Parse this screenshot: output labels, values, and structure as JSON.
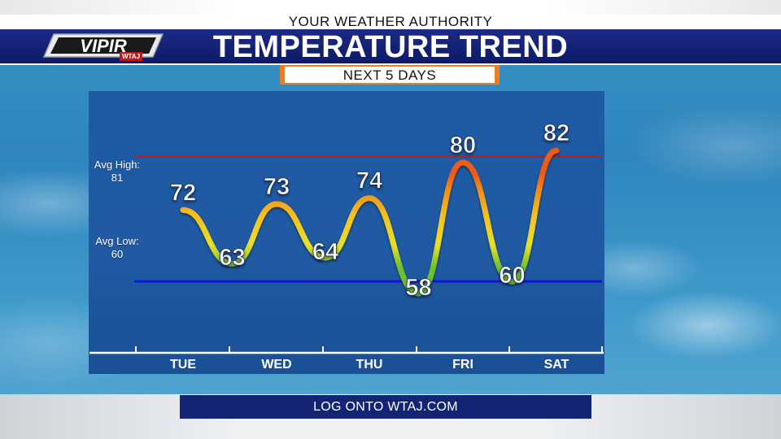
{
  "header": {
    "tagline": "YOUR WEATHER AUTHORITY",
    "title": "TEMPERATURE TREND",
    "subtitle": "NEXT 5 DAYS"
  },
  "logo": {
    "text": "VIPIR",
    "badge": "WTAJ"
  },
  "footer": {
    "text": "LOG ONTO WTAJ.COM"
  },
  "reference_lines": {
    "avg_high_label": "Avg High:",
    "avg_high_value": "81",
    "avg_low_label": "Avg Low:",
    "avg_low_value": "60"
  },
  "colors": {
    "avg_high_line": "#b0202a",
    "avg_low_line": "#1010e8",
    "accent_orange": "#f07d19",
    "navy": "#142475"
  },
  "chart_data": {
    "type": "line",
    "title": "TEMPERATURE TREND",
    "subtitle": "NEXT 5 DAYS",
    "categories": [
      "TUE",
      "WED",
      "THU",
      "FRI",
      "SAT"
    ],
    "x": [
      "TUE",
      "TUE night",
      "WED",
      "WED night",
      "THU",
      "THU night",
      "FRI",
      "FRI night",
      "SAT"
    ],
    "values": [
      72,
      63,
      73,
      64,
      74,
      58,
      80,
      60,
      82
    ],
    "point_labels": [
      "72",
      "63",
      "73",
      "64",
      "74",
      "58",
      "80",
      "60",
      "82"
    ],
    "avg_high": 81,
    "avg_low": 60,
    "ylim": [
      48,
      92
    ],
    "grid": false,
    "legend": "none"
  }
}
